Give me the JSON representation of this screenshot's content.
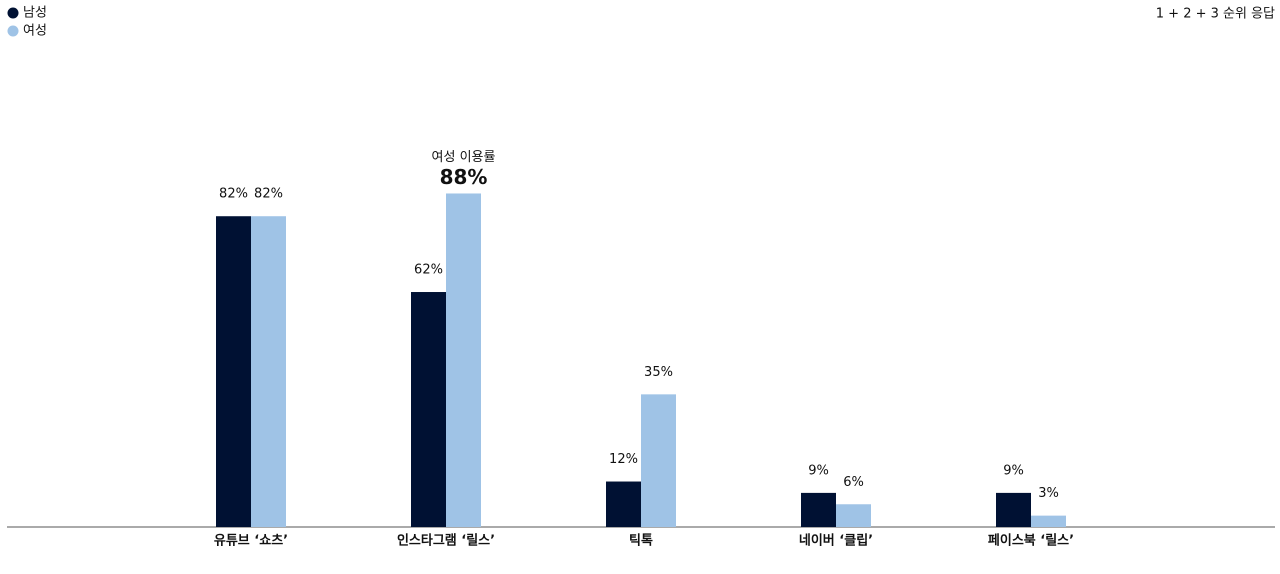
{
  "chart_data": {
    "type": "bar",
    "note": "1 + 2 + 3 순위 응답",
    "categories": [
      "유튜브 ‘쇼츠’",
      "인스타그램 ‘릴스’",
      "틱톡",
      "네이버 ‘클립’",
      "페이스북 ‘릴스’"
    ],
    "series": [
      {
        "name": "남성",
        "color": "#001133",
        "values": [
          82,
          62,
          12,
          9,
          9
        ],
        "value_labels": [
          "82%",
          "62%",
          "12%",
          "9%",
          "9%"
        ]
      },
      {
        "name": "여성",
        "color": "#9fc3e6",
        "values": [
          82,
          88,
          35,
          6,
          3
        ],
        "value_labels": [
          "82%",
          "88%",
          "35%",
          "6%",
          "3%"
        ]
      }
    ],
    "highlight": {
      "series": 1,
      "index": 1,
      "label": "여성 이용률",
      "color": "#3a86c8"
    },
    "ylim": [
      0,
      100
    ],
    "legend": "top-left"
  }
}
